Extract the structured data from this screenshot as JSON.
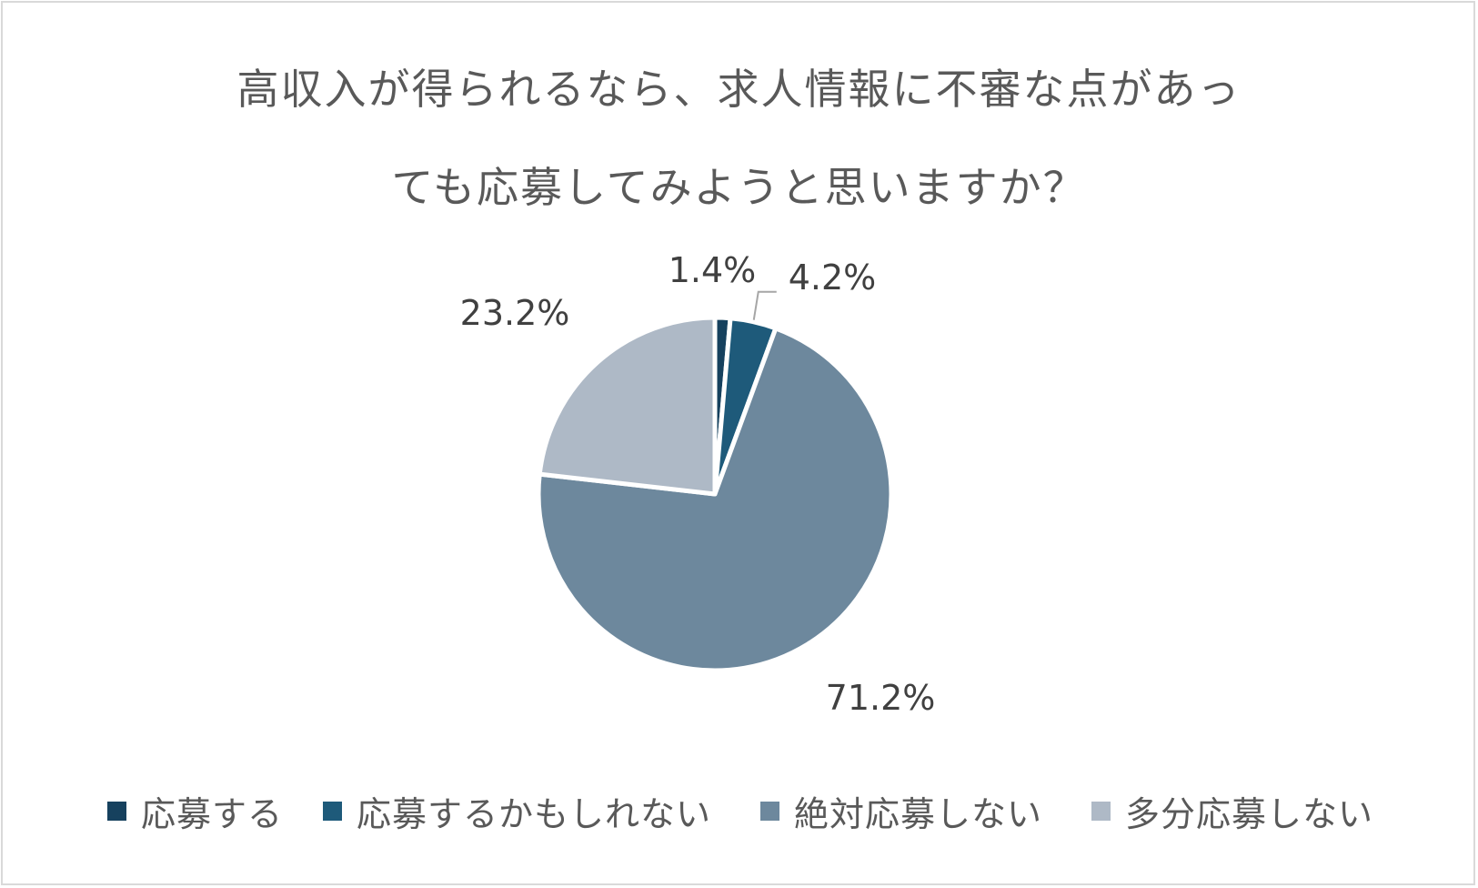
{
  "chart_data": {
    "type": "pie",
    "title_lines": [
      "高収入が得られるなら、求人情報に不審な点があっ",
      "ても応募してみようと思いますか？"
    ],
    "categories": [
      "応募する",
      "応募するかもしれない",
      "絶対応募しない",
      "多分応募しない"
    ],
    "values": [
      1.4,
      4.2,
      71.2,
      23.2
    ],
    "labels": [
      "1.4%",
      "4.2%",
      "71.2%",
      "23.2%"
    ],
    "colors": [
      "#16415e",
      "#1e5a7a",
      "#6d889d",
      "#aeb9c6"
    ],
    "legend_position": "bottom",
    "start_angle": "12 o'clock",
    "direction": "clockwise"
  }
}
